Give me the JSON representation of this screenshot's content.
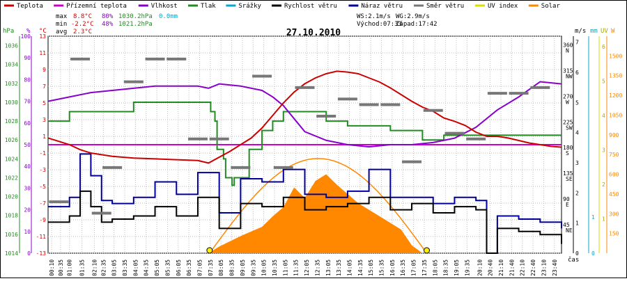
{
  "title": "27.10.2010",
  "legend": [
    {
      "label": "Teplota",
      "color": "#cc0000"
    },
    {
      "label": "Přízemní teplota",
      "color": "#cc00cc"
    },
    {
      "label": "Vlhkost",
      "color": "#8800cc"
    },
    {
      "label": "Tlak",
      "color": "#228b22"
    },
    {
      "label": "Srážky",
      "color": "#00aacc"
    },
    {
      "label": "Rychlost větru",
      "color": "#000000"
    },
    {
      "label": "Náraz větru",
      "color": "#000099"
    },
    {
      "label": "Směr větru",
      "color": "#777777"
    },
    {
      "label": "UV index",
      "color": "#dddd00"
    },
    {
      "label": "Solar",
      "color": "#ff8800"
    }
  ],
  "stats": {
    "max": {
      "label": "max",
      "temp": "8.8°C",
      "hum": "80%",
      "press": "1030.2hPa",
      "rain": "0.0mm"
    },
    "min": {
      "label": "min",
      "temp": "-2.2°C",
      "hum": "48%",
      "press": "1021.2hPa"
    },
    "avg": {
      "label": "avg",
      "temp": "2.3°C"
    }
  },
  "wind_info": {
    "ws": "WS:2.1m/s",
    "wg": "WG:2.9m/s",
    "sunrise": "Východ:07:33",
    "sunset": "Západ:17:42"
  },
  "axes": {
    "left_units": [
      "hPa",
      "%",
      "°C"
    ],
    "right_units": [
      "m/s",
      "mm",
      "UV",
      "W"
    ],
    "x_label": "čas",
    "hpa_ticks": [
      "1036",
      "1034",
      "1032",
      "1030",
      "1028",
      "1026",
      "1024",
      "1022",
      "1020",
      "1018",
      "1016",
      "1014"
    ],
    "pct_ticks": [
      "100",
      "90",
      "80",
      "70",
      "60",
      "50",
      "40",
      "30",
      "20",
      "10",
      "0"
    ],
    "temp_ticks": [
      "13",
      "11",
      "9",
      "7",
      "5",
      "3",
      "1",
      "-1",
      "-3",
      "-5",
      "-7",
      "-9",
      "-11",
      "-13"
    ],
    "dir_ticks": [
      {
        "deg": "360",
        "lab": "N"
      },
      {
        "deg": "315",
        "lab": "NW"
      },
      {
        "deg": "270",
        "lab": "W"
      },
      {
        "deg": "225",
        "lab": "SW"
      },
      {
        "deg": "180",
        "lab": "S"
      },
      {
        "deg": "135",
        "lab": "SE"
      },
      {
        "deg": "90",
        "lab": "E"
      },
      {
        "deg": "45",
        "lab": "NE"
      }
    ],
    "ms_ticks": [
      "7",
      "6",
      "5",
      "4",
      "3",
      "2",
      "1",
      "0"
    ],
    "mm_ticks": [
      "1",
      "0"
    ],
    "uv_ticks": [
      "6",
      "5",
      "4",
      "3",
      "2",
      "1"
    ],
    "w_ticks": [
      "1500",
      "1350",
      "1200",
      "1050",
      "900",
      "750",
      "600",
      "450",
      "300",
      "150"
    ],
    "time_ticks": [
      "00:10",
      "00:35",
      "01:00",
      "01:35",
      "02:10",
      "02:35",
      "03:05",
      "03:35",
      "04:05",
      "04:35",
      "05:05",
      "05:35",
      "06:05",
      "06:35",
      "07:05",
      "07:35",
      "08:05",
      "08:35",
      "09:05",
      "09:35",
      "10:05",
      "10:35",
      "11:05",
      "11:35",
      "12:05",
      "12:35",
      "13:05",
      "13:35",
      "14:05",
      "14:35",
      "15:05",
      "15:35",
      "16:05",
      "16:35",
      "17:05",
      "17:35",
      "18:05",
      "18:35",
      "19:05",
      "19:35",
      "20:10",
      "20:40",
      "21:10",
      "21:40",
      "22:10",
      "22:40",
      "23:10",
      "23:40"
    ]
  },
  "chart_data": {
    "type": "line",
    "title": "27.10.2010",
    "x_hours_range": [
      0,
      24
    ],
    "series": [
      {
        "name": "Teplota",
        "unit": "°C",
        "ylim": [
          -13,
          13
        ],
        "color": "#cc0000",
        "x": [
          0,
          0.5,
          1,
          1.5,
          2,
          3,
          4,
          5,
          6,
          7,
          7.5,
          8,
          8.5,
          9,
          9.5,
          10,
          10.5,
          11,
          11.5,
          12,
          12.5,
          13,
          13.5,
          14,
          14.5,
          15,
          15.5,
          16,
          16.5,
          17,
          17.5,
          18,
          18.5,
          19,
          19.5,
          20,
          20.5,
          21,
          21.5,
          22,
          22.5,
          23,
          23.5,
          24
        ],
        "y": [
          0.8,
          0.4,
          0,
          -0.6,
          -1,
          -1.4,
          -1.6,
          -1.7,
          -1.8,
          -1.9,
          -2.2,
          -1.5,
          -0.8,
          0,
          0.8,
          2,
          3.5,
          5,
          6.3,
          7.3,
          8,
          8.5,
          8.8,
          8.7,
          8.5,
          8,
          7.5,
          6.8,
          6,
          5.2,
          4.5,
          4,
          3.2,
          2.8,
          2.3,
          1.5,
          1,
          1,
          0.8,
          0.5,
          0.2,
          0,
          -0.2,
          -0.3
        ]
      },
      {
        "name": "Přízemní teplota",
        "unit": "°C",
        "ylim": [
          -13,
          13
        ],
        "color": "#cc00cc",
        "x": [
          0,
          24
        ],
        "y": [
          0,
          0
        ]
      },
      {
        "name": "Vlhkost",
        "unit": "%",
        "ylim": [
          0,
          100
        ],
        "color": "#8800cc",
        "x": [
          0,
          1,
          2,
          3,
          4,
          5,
          6,
          7,
          7.5,
          8,
          9,
          10,
          10.5,
          11,
          11.5,
          12,
          13,
          14,
          15,
          16,
          17,
          18,
          19,
          20,
          21,
          22,
          23,
          24
        ],
        "y": [
          70,
          72,
          74,
          75,
          76,
          77,
          77,
          77,
          76,
          78,
          77,
          75,
          72,
          68,
          62,
          56,
          52,
          50,
          49,
          50,
          50,
          51,
          53,
          58,
          66,
          72,
          79,
          78
        ]
      },
      {
        "name": "Tlak",
        "unit": "hPa",
        "ylim": [
          1014,
          1037
        ],
        "color": "#228b22",
        "x": [
          0,
          0.9,
          1,
          3.8,
          4,
          7.5,
          7.6,
          7.8,
          7.9,
          8.2,
          8.3,
          8.6,
          8.7,
          9.3,
          9.4,
          10,
          10.5,
          11,
          12,
          13,
          14,
          15,
          16,
          17,
          17.5,
          18,
          18.5,
          19,
          20,
          21,
          22,
          23,
          24
        ],
        "y": [
          1028,
          1028,
          1029,
          1029,
          1030,
          1030,
          1029,
          1028,
          1025,
          1024,
          1022,
          1021.2,
          1022,
          1022,
          1025,
          1027,
          1028,
          1029,
          1029,
          1028,
          1027.5,
          1027.5,
          1027,
          1027,
          1026,
          1026,
          1026.5,
          1026.5,
          1026.5,
          1026.5,
          1026.5,
          1026.5,
          1026.5
        ]
      },
      {
        "name": "Rychlost větru",
        "unit": "m/s",
        "ylim": [
          0,
          7
        ],
        "color": "#000000",
        "x": [
          0,
          1,
          1.5,
          2,
          2.5,
          3,
          4,
          5,
          6,
          7,
          8,
          9,
          10,
          11,
          12,
          13,
          14,
          15,
          16,
          17,
          18,
          19,
          20,
          20.5,
          21,
          22,
          23,
          24
        ],
        "y": [
          1,
          1.2,
          2,
          1.5,
          1,
          1.1,
          1.2,
          1.5,
          1.2,
          1.8,
          0.8,
          1.6,
          1.5,
          1.8,
          1.4,
          1.5,
          1.6,
          1.8,
          1.4,
          1.6,
          1.3,
          1.5,
          1.4,
          0,
          0.8,
          0.7,
          0.6,
          0.3
        ]
      },
      {
        "name": "Náraz větru",
        "unit": "m/s",
        "ylim": [
          0,
          7
        ],
        "color": "#000099",
        "x": [
          0,
          1,
          1.5,
          2,
          2.5,
          3,
          4,
          5,
          6,
          7,
          8,
          9,
          10,
          11,
          12,
          13,
          14,
          15,
          16,
          17,
          18,
          19,
          20,
          20.5,
          21,
          22,
          23,
          24
        ],
        "y": [
          1.5,
          1.8,
          3.2,
          2.5,
          1.7,
          1.6,
          1.8,
          2.3,
          1.9,
          2.6,
          1.3,
          2.4,
          2.3,
          2.7,
          1.9,
          1.8,
          2,
          2.7,
          1.8,
          1.8,
          1.6,
          1.8,
          1.7,
          0,
          1.2,
          1.1,
          1,
          0.8
        ]
      },
      {
        "name": "Směr větru",
        "unit": "°",
        "ylim": [
          0,
          380
        ],
        "color": "#777777",
        "x": [
          0.5,
          1.5,
          2.5,
          3,
          4,
          5,
          6,
          7,
          8,
          9,
          10,
          11,
          12,
          13,
          14,
          15,
          16,
          17,
          18,
          19,
          20,
          21,
          22,
          23
        ],
        "y": [
          90,
          340,
          70,
          150,
          300,
          340,
          340,
          200,
          200,
          150,
          310,
          150,
          290,
          240,
          270,
          260,
          260,
          160,
          250,
          210,
          200,
          280,
          280,
          290
        ]
      },
      {
        "name": "Solar",
        "unit": "W",
        "ylim": [
          0,
          1650
        ],
        "color": "#ff8800",
        "x": [
          7.5,
          8,
          9,
          10,
          10.5,
          11,
          11.5,
          12,
          12.5,
          13,
          13.5,
          14,
          14.5,
          15,
          15.5,
          16,
          16.5,
          17,
          17.5
        ],
        "y": [
          0,
          50,
          130,
          200,
          280,
          350,
          500,
          420,
          550,
          600,
          520,
          450,
          380,
          330,
          280,
          230,
          180,
          60,
          0
        ]
      }
    ],
    "sun_marks": [
      {
        "time": "07:33"
      },
      {
        "time": "17:42"
      }
    ]
  }
}
